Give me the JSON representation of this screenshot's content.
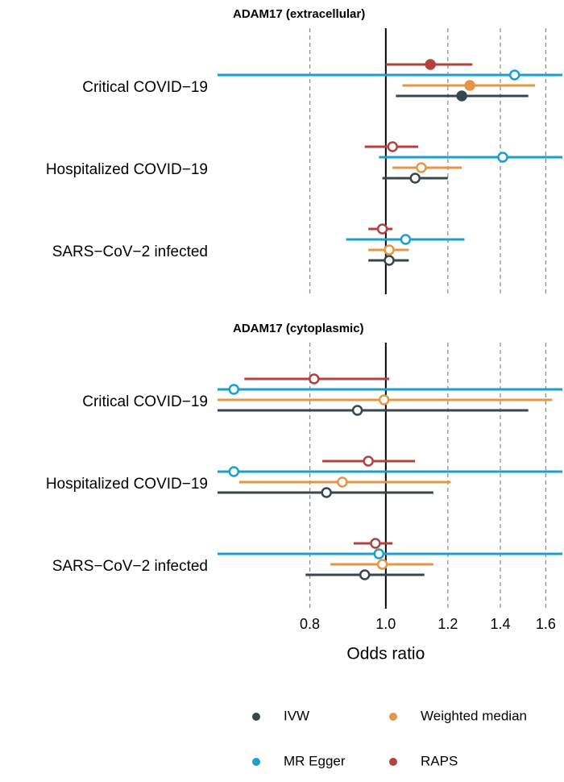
{
  "chart_data": [
    {
      "type": "forest",
      "title": "ADAM17 (extracellular)",
      "categories": [
        "Critical COVID−19",
        "Hospitalized COVID−19",
        "SARS−CoV−2 infected"
      ],
      "series": [
        {
          "name": "IVW",
          "color": "#37474f",
          "values": [
            1.25,
            1.09,
            1.01
          ],
          "lower": [
            1.03,
            0.99,
            0.95
          ],
          "upper": [
            1.52,
            1.2,
            1.07
          ],
          "filled": [
            true,
            false,
            false
          ]
        },
        {
          "name": "Weighted median",
          "color": "#e69545",
          "values": [
            1.28,
            1.11,
            1.01
          ],
          "lower": [
            1.05,
            1.02,
            0.95
          ],
          "upper": [
            1.55,
            1.25,
            1.07
          ],
          "filled": [
            true,
            false,
            false
          ]
        },
        {
          "name": "MR Egger",
          "color": "#1a9fd0",
          "values": [
            1.46,
            1.41,
            1.06
          ],
          "lower": [
            0.55,
            0.98,
            0.89
          ],
          "upper": [
            1.9,
            1.9,
            1.26
          ],
          "filled": [
            false,
            false,
            false
          ]
        },
        {
          "name": "RAPS",
          "color": "#b5413f",
          "values": [
            1.14,
            1.02,
            0.99
          ],
          "lower": [
            1.0,
            0.94,
            0.95
          ],
          "upper": [
            1.29,
            1.1,
            1.02
          ],
          "filled": [
            true,
            false,
            false
          ]
        }
      ],
      "xlim": [
        0.61,
        1.68
      ],
      "log_scale": true,
      "reference": 1,
      "xticks": [
        0.8,
        {
          "value": 1,
          "label": "1.0"
        },
        1.2,
        1.4,
        1.6
      ],
      "x_tick_labels": false
    },
    {
      "type": "forest",
      "title": "ADAM17 (cytoplasmic)",
      "categories": [
        "Critical COVID−19",
        "Hospitalized COVID−19",
        "SARS−CoV−2 infected"
      ],
      "series": [
        {
          "name": "IVW",
          "color": "#37474f",
          "values": [
            0.92,
            0.84,
            0.94
          ],
          "lower": [
            0.55,
            0.55,
            0.79
          ],
          "upper": [
            1.52,
            1.15,
            1.12
          ],
          "filled": [
            false,
            false,
            false
          ]
        },
        {
          "name": "Weighted median",
          "color": "#e69545",
          "values": [
            0.995,
            0.88,
            0.99
          ],
          "lower": [
            0.58,
            0.65,
            0.85
          ],
          "upper": [
            1.63,
            1.21,
            1.15
          ],
          "filled": [
            false,
            false,
            false
          ]
        },
        {
          "name": "MR Egger",
          "color": "#1a9fd0",
          "values": [
            0.64,
            0.64,
            0.98
          ],
          "lower": [
            0.5,
            0.5,
            0.5
          ],
          "upper": [
            2.0,
            2.2,
            2.0
          ],
          "filled": [
            false,
            false,
            false
          ]
        },
        {
          "name": "RAPS",
          "color": "#b5413f",
          "values": [
            0.81,
            0.95,
            0.97
          ],
          "lower": [
            0.66,
            0.83,
            0.91
          ],
          "upper": [
            1.01,
            1.09,
            1.02
          ],
          "filled": [
            false,
            false,
            false
          ]
        }
      ],
      "xlim": [
        0.61,
        1.68
      ],
      "log_scale": true,
      "reference": 1,
      "xticks": [
        0.8,
        {
          "value": 1,
          "label": "1.0"
        },
        1.2,
        1.4,
        1.6
      ],
      "x_tick_labels": true,
      "xlabel": "Odds ratio",
      "legend": "bottom"
    }
  ]
}
